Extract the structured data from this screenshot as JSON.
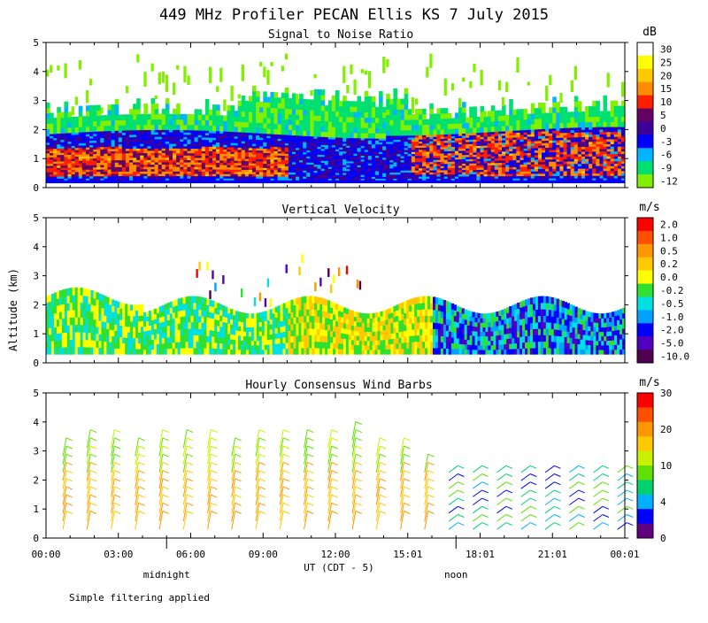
{
  "figure": {
    "title": "449 MHz Profiler PECAN Ellis KS  7 July 2015",
    "ylabel": "Altitude (km)",
    "xlabel": "UT  (CDT - 5)",
    "x_tick_labels": [
      "00:00",
      "03:00",
      "06:00",
      "09:00",
      "12:00",
      "15:01",
      "18:01",
      "21:01",
      "00:01"
    ],
    "local_time_markers": [
      {
        "label": "midnight",
        "hour_ut": 5
      },
      {
        "label": "noon",
        "hour_ut": 17
      }
    ],
    "footnote": "Simple filtering applied",
    "y_tick_labels": [
      "0",
      "1",
      "2",
      "3",
      "4",
      "5"
    ]
  },
  "chart_data": [
    {
      "type": "heatmap",
      "title": "Signal to Noise Ratio",
      "unit": "dB",
      "x_range_hours": [
        0,
        24
      ],
      "ylim_km": [
        0,
        5
      ],
      "colorbar_labels": [
        "30",
        "25",
        "20",
        "15",
        "10",
        "5",
        "0",
        "-3",
        "-6",
        "-9",
        "-12"
      ],
      "colorbar_colors": [
        "#ffffff",
        "#ffff00",
        "#ffc800",
        "#ff8c00",
        "#ff1e00",
        "#640064",
        "#3c0096",
        "#0000ff",
        "#00b4ff",
        "#00e070",
        "#80f000"
      ],
      "layers": [
        {
          "label": "strong echo (10-20 dB)",
          "from_km": 0.3,
          "to_km": 1.4
        },
        {
          "label": "moderate (0-5 dB)",
          "from_km": 0.3,
          "to_km": 1.9
        },
        {
          "label": "weak (-12 to -3 dB)",
          "from_km": 1.9,
          "to_km": 3.0
        }
      ]
    },
    {
      "type": "heatmap",
      "title": "Vertical Velocity",
      "unit": "m/s",
      "x_range_hours": [
        0,
        24
      ],
      "ylim_km": [
        0,
        5
      ],
      "colorbar_labels": [
        "2.0",
        "1.0",
        "0.5",
        "0.2",
        "0.0",
        "-0.2",
        "-0.5",
        "-1.0",
        "-2.0",
        "-5.0",
        "-10.0"
      ],
      "colorbar_colors": [
        "#ff0000",
        "#ff5000",
        "#ff9600",
        "#ffc800",
        "#ffff00",
        "#30e030",
        "#00e0e0",
        "#00a0ff",
        "#0000ff",
        "#5000c0",
        "#500050"
      ],
      "coverage_top_km": 2.0
    },
    {
      "type": "wind_barbs",
      "title": "Hourly Consensus Wind Barbs",
      "unit": "m/s",
      "x_range_hours": [
        0,
        24
      ],
      "ylim_km": [
        0,
        5
      ],
      "colorbar_labels": [
        "30",
        "20",
        "10",
        "4",
        "0"
      ],
      "colorbar_colors": [
        "#ff0000",
        "#ff5000",
        "#ff9600",
        "#ffc800",
        "#c8f000",
        "#60e000",
        "#00d070",
        "#00b0ff",
        "#0000ff",
        "#600080"
      ],
      "speed_bands_m_s": [
        30,
        20,
        10,
        4,
        0
      ]
    }
  ]
}
